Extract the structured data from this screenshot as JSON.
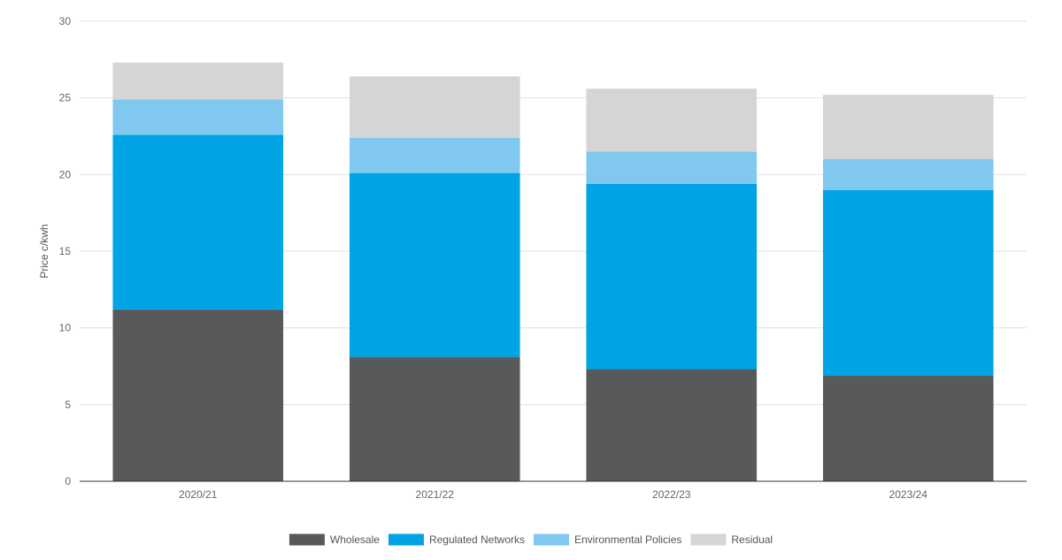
{
  "chart_data": {
    "type": "bar",
    "stacked": true,
    "title": "",
    "xlabel": "",
    "ylabel": "Price c/kwh",
    "ylim": [
      0,
      30
    ],
    "yticks": [
      0,
      5,
      10,
      15,
      20,
      25,
      30
    ],
    "grid": true,
    "legend_position": "bottom",
    "categories": [
      "2020/21",
      "2021/22",
      "2022/23",
      "2023/24"
    ],
    "series": [
      {
        "name": "Wholesale",
        "color": "#58595b",
        "values": [
          11.2,
          8.1,
          7.3,
          6.9
        ]
      },
      {
        "name": "Regulated Networks",
        "color": "#00a3e3",
        "values": [
          11.4,
          12.0,
          12.1,
          12.1
        ]
      },
      {
        "name": "Environmental Policies",
        "color": "#80c8ef",
        "values": [
          2.3,
          2.3,
          2.1,
          2.0
        ]
      },
      {
        "name": "Residual",
        "color": "#d5d5d5",
        "values": [
          2.4,
          4.0,
          4.1,
          4.2
        ]
      }
    ]
  }
}
